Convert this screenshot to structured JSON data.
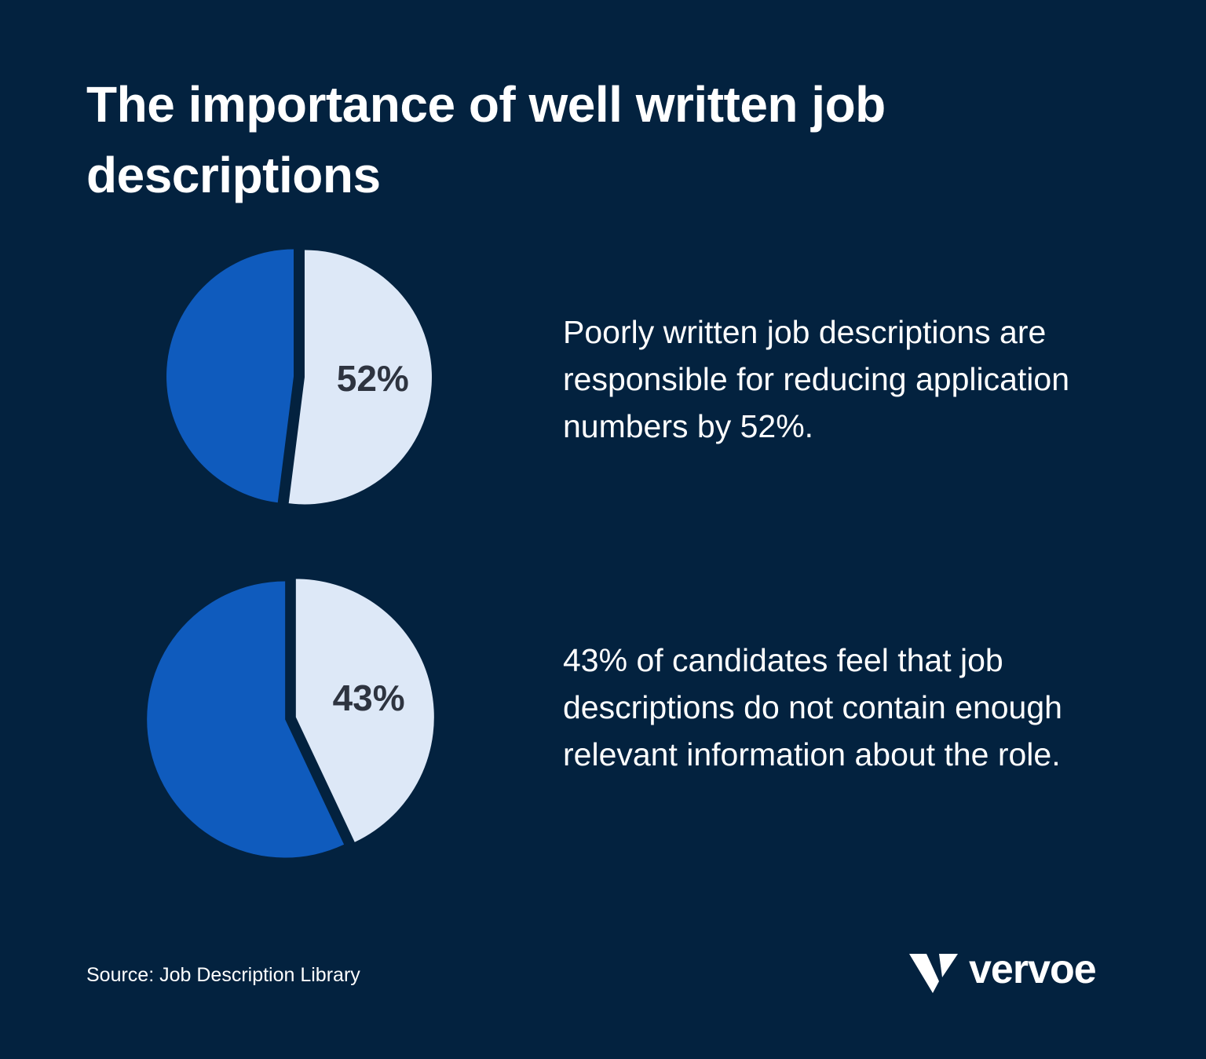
{
  "title": "The importance of well written job descriptions",
  "source": "Source: Job Description Library",
  "brand": "vervoe",
  "chart_data": [
    {
      "type": "pie",
      "values": [
        52,
        48
      ],
      "value_labels": [
        "52%",
        null
      ],
      "colors": [
        "#dde8f7",
        "#0f5bbd"
      ],
      "description": "Poorly written job descriptions are responsible for reducing application numbers by 52%."
    },
    {
      "type": "pie",
      "values": [
        43,
        57
      ],
      "value_labels": [
        "43%",
        null
      ],
      "colors": [
        "#dde8f7",
        "#0f5bbd"
      ],
      "description": "43% of candidates feel that job descriptions do not contain enough relevant information about the role."
    }
  ]
}
